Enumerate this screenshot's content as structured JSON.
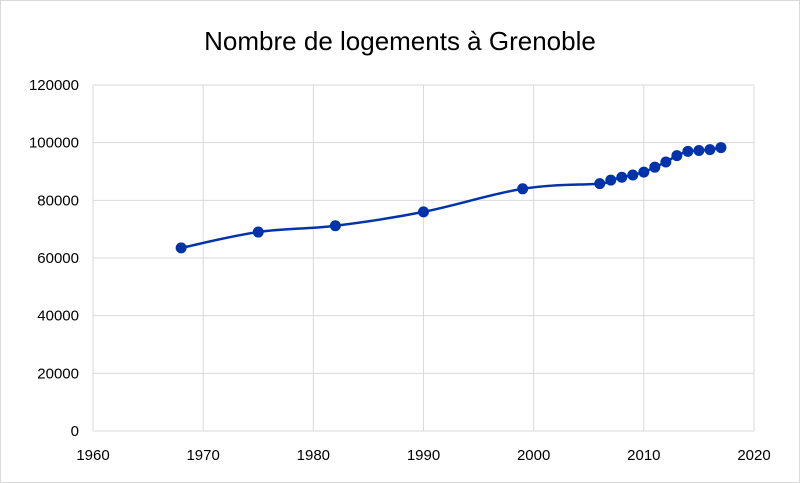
{
  "chart_data": {
    "type": "scatter",
    "title": "Nombre de logements à Grenoble",
    "xlabel": "",
    "ylabel": "",
    "xlim": [
      1960,
      2020
    ],
    "ylim": [
      0,
      120000
    ],
    "x_ticks": [
      "1960",
      "1970",
      "1980",
      "1990",
      "2000",
      "2010",
      "2020"
    ],
    "y_ticks": [
      "0",
      "20000",
      "40000",
      "60000",
      "80000",
      "100000",
      "120000"
    ],
    "grid": true,
    "legend": "none",
    "smooth_line": true,
    "series": [
      {
        "color": "#0033aa",
        "x": [
          1968,
          1975,
          1982,
          1990,
          1999,
          2006,
          2007,
          2008,
          2009,
          2010,
          2011,
          2012,
          2013,
          2014,
          2015,
          2016,
          2017
        ],
        "y": [
          63500,
          69000,
          71200,
          76000,
          84000,
          85800,
          87000,
          88000,
          88800,
          89800,
          91500,
          93300,
          95500,
          97000,
          97300,
          97600,
          98300
        ]
      }
    ]
  }
}
